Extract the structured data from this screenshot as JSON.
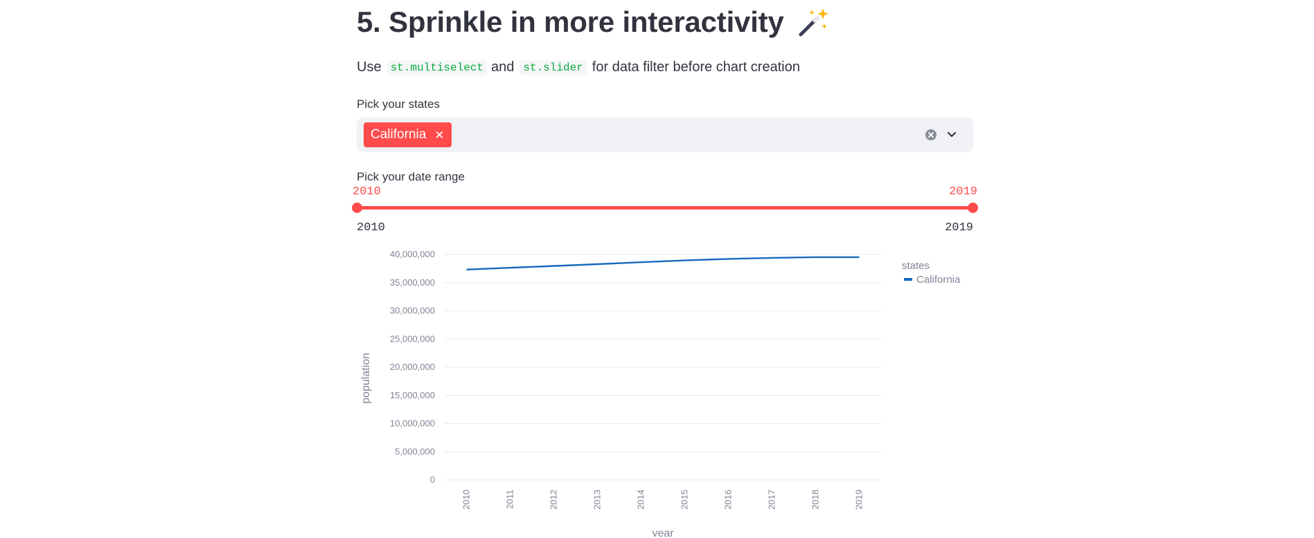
{
  "header": {
    "title": "5. Sprinkle in more interactivity"
  },
  "description": {
    "use": "Use",
    "code1": "st.multiselect",
    "and": "and",
    "code2": "st.slider",
    "rest": "for data filter before chart creation"
  },
  "multiselect": {
    "label": "Pick your states",
    "selected": [
      "California"
    ]
  },
  "slider": {
    "label": "Pick your date range",
    "value_low": "2010",
    "value_high": "2019",
    "min": "2010",
    "max": "2019",
    "range_fraction": [
      0,
      1
    ]
  },
  "icons": {
    "wand": "magic-wand-sparkles-icon",
    "clear": "clear-circle-icon",
    "dropdown": "chevron-down-icon",
    "tag_remove": "close-icon"
  },
  "colors": {
    "accent": "#ff4b4b",
    "code": "#09ab3b",
    "series": "#1668bd",
    "input_bg": "#f0f2f6"
  },
  "chart_data": {
    "type": "line",
    "x": [
      2010,
      2011,
      2012,
      2013,
      2014,
      2015,
      2016,
      2017,
      2018,
      2019
    ],
    "series": [
      {
        "name": "California",
        "values": [
          37320903,
          37641823,
          37960782,
          38280824,
          38625139,
          38953142,
          39209127,
          39399349,
          39519210,
          39512223
        ]
      }
    ],
    "xlabel": "year",
    "ylabel": "population",
    "ylim": [
      0,
      40000000
    ],
    "yticks": [
      "0",
      "5,000,000",
      "10,000,000",
      "15,000,000",
      "20,000,000",
      "25,000,000",
      "30,000,000",
      "35,000,000",
      "40,000,000"
    ],
    "xticks": [
      "2010",
      "2011",
      "2012",
      "2013",
      "2014",
      "2015",
      "2016",
      "2017",
      "2018",
      "2019"
    ],
    "legend_title": "states",
    "legend_position": "top-right",
    "grid": true
  }
}
